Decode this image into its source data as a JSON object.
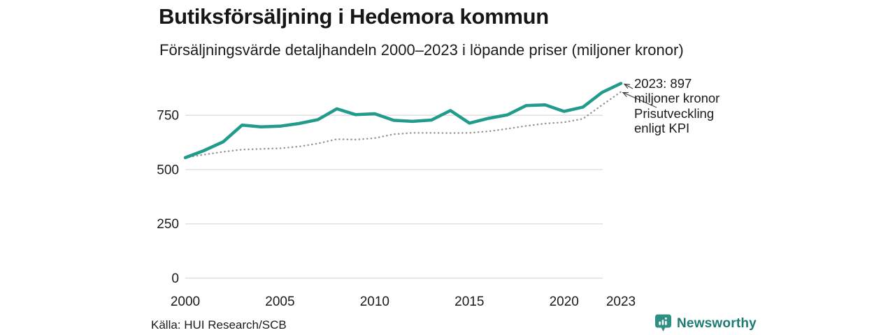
{
  "header": {
    "title": "Butiksförsäljning i Hedemora kommun",
    "subtitle": "Försäljningsvärde detaljhandeln 2000–2023 i löpande priser (miljoner kronor)"
  },
  "chart_data": {
    "type": "line",
    "x": [
      2000,
      2001,
      2002,
      2003,
      2004,
      2005,
      2006,
      2007,
      2008,
      2009,
      2010,
      2011,
      2012,
      2013,
      2014,
      2015,
      2016,
      2017,
      2018,
      2019,
      2020,
      2021,
      2022,
      2023
    ],
    "series": [
      {
        "name": "Försäljningsvärde detaljhandeln (löpande priser)",
        "style": "solid",
        "color": "#219b8b",
        "values": [
          555,
          588,
          628,
          705,
          697,
          700,
          712,
          730,
          780,
          753,
          757,
          727,
          722,
          728,
          772,
          714,
          736,
          752,
          795,
          798,
          768,
          788,
          855,
          897
        ]
      },
      {
        "name": "Prisutveckling enligt KPI",
        "style": "dotted",
        "color": "#949494",
        "values": [
          555,
          569,
          582,
          592,
          595,
          598,
          606,
          620,
          640,
          638,
          645,
          663,
          669,
          669,
          668,
          669,
          676,
          688,
          701,
          712,
          718,
          734,
          797,
          858
        ]
      }
    ],
    "ylim": [
      0,
      950
    ],
    "yticks": [
      "0",
      "250",
      "500",
      "750"
    ],
    "ytick_values": [
      0,
      250,
      500,
      750
    ],
    "xticks": [
      "2000",
      "2005",
      "2010",
      "2015",
      "2020",
      "2023"
    ],
    "xtick_values": [
      2000,
      2005,
      2010,
      2015,
      2020,
      2023
    ],
    "grid": "horizontal",
    "annotations": [
      {
        "lines": [
          "2023: 897",
          "miljoner kronor"
        ],
        "target": "solid-line-end"
      },
      {
        "lines": [
          "Prisutveckling",
          "enligt KPI"
        ],
        "target": "dotted-line-end"
      }
    ],
    "title": "Butiksförsäljning i Hedemora kommun",
    "xlabel": "",
    "ylabel": ""
  },
  "footer": {
    "source": "Källa: HUI Research/SCB",
    "brand": "Newsworthy"
  },
  "colors": {
    "accent_line": "#219b8b",
    "kpi_line": "#949494",
    "gridline": "#dcdcdc",
    "brand_icon": "#2e9084",
    "brand_text": "#1d7c72",
    "text": "#1a1a1a"
  }
}
